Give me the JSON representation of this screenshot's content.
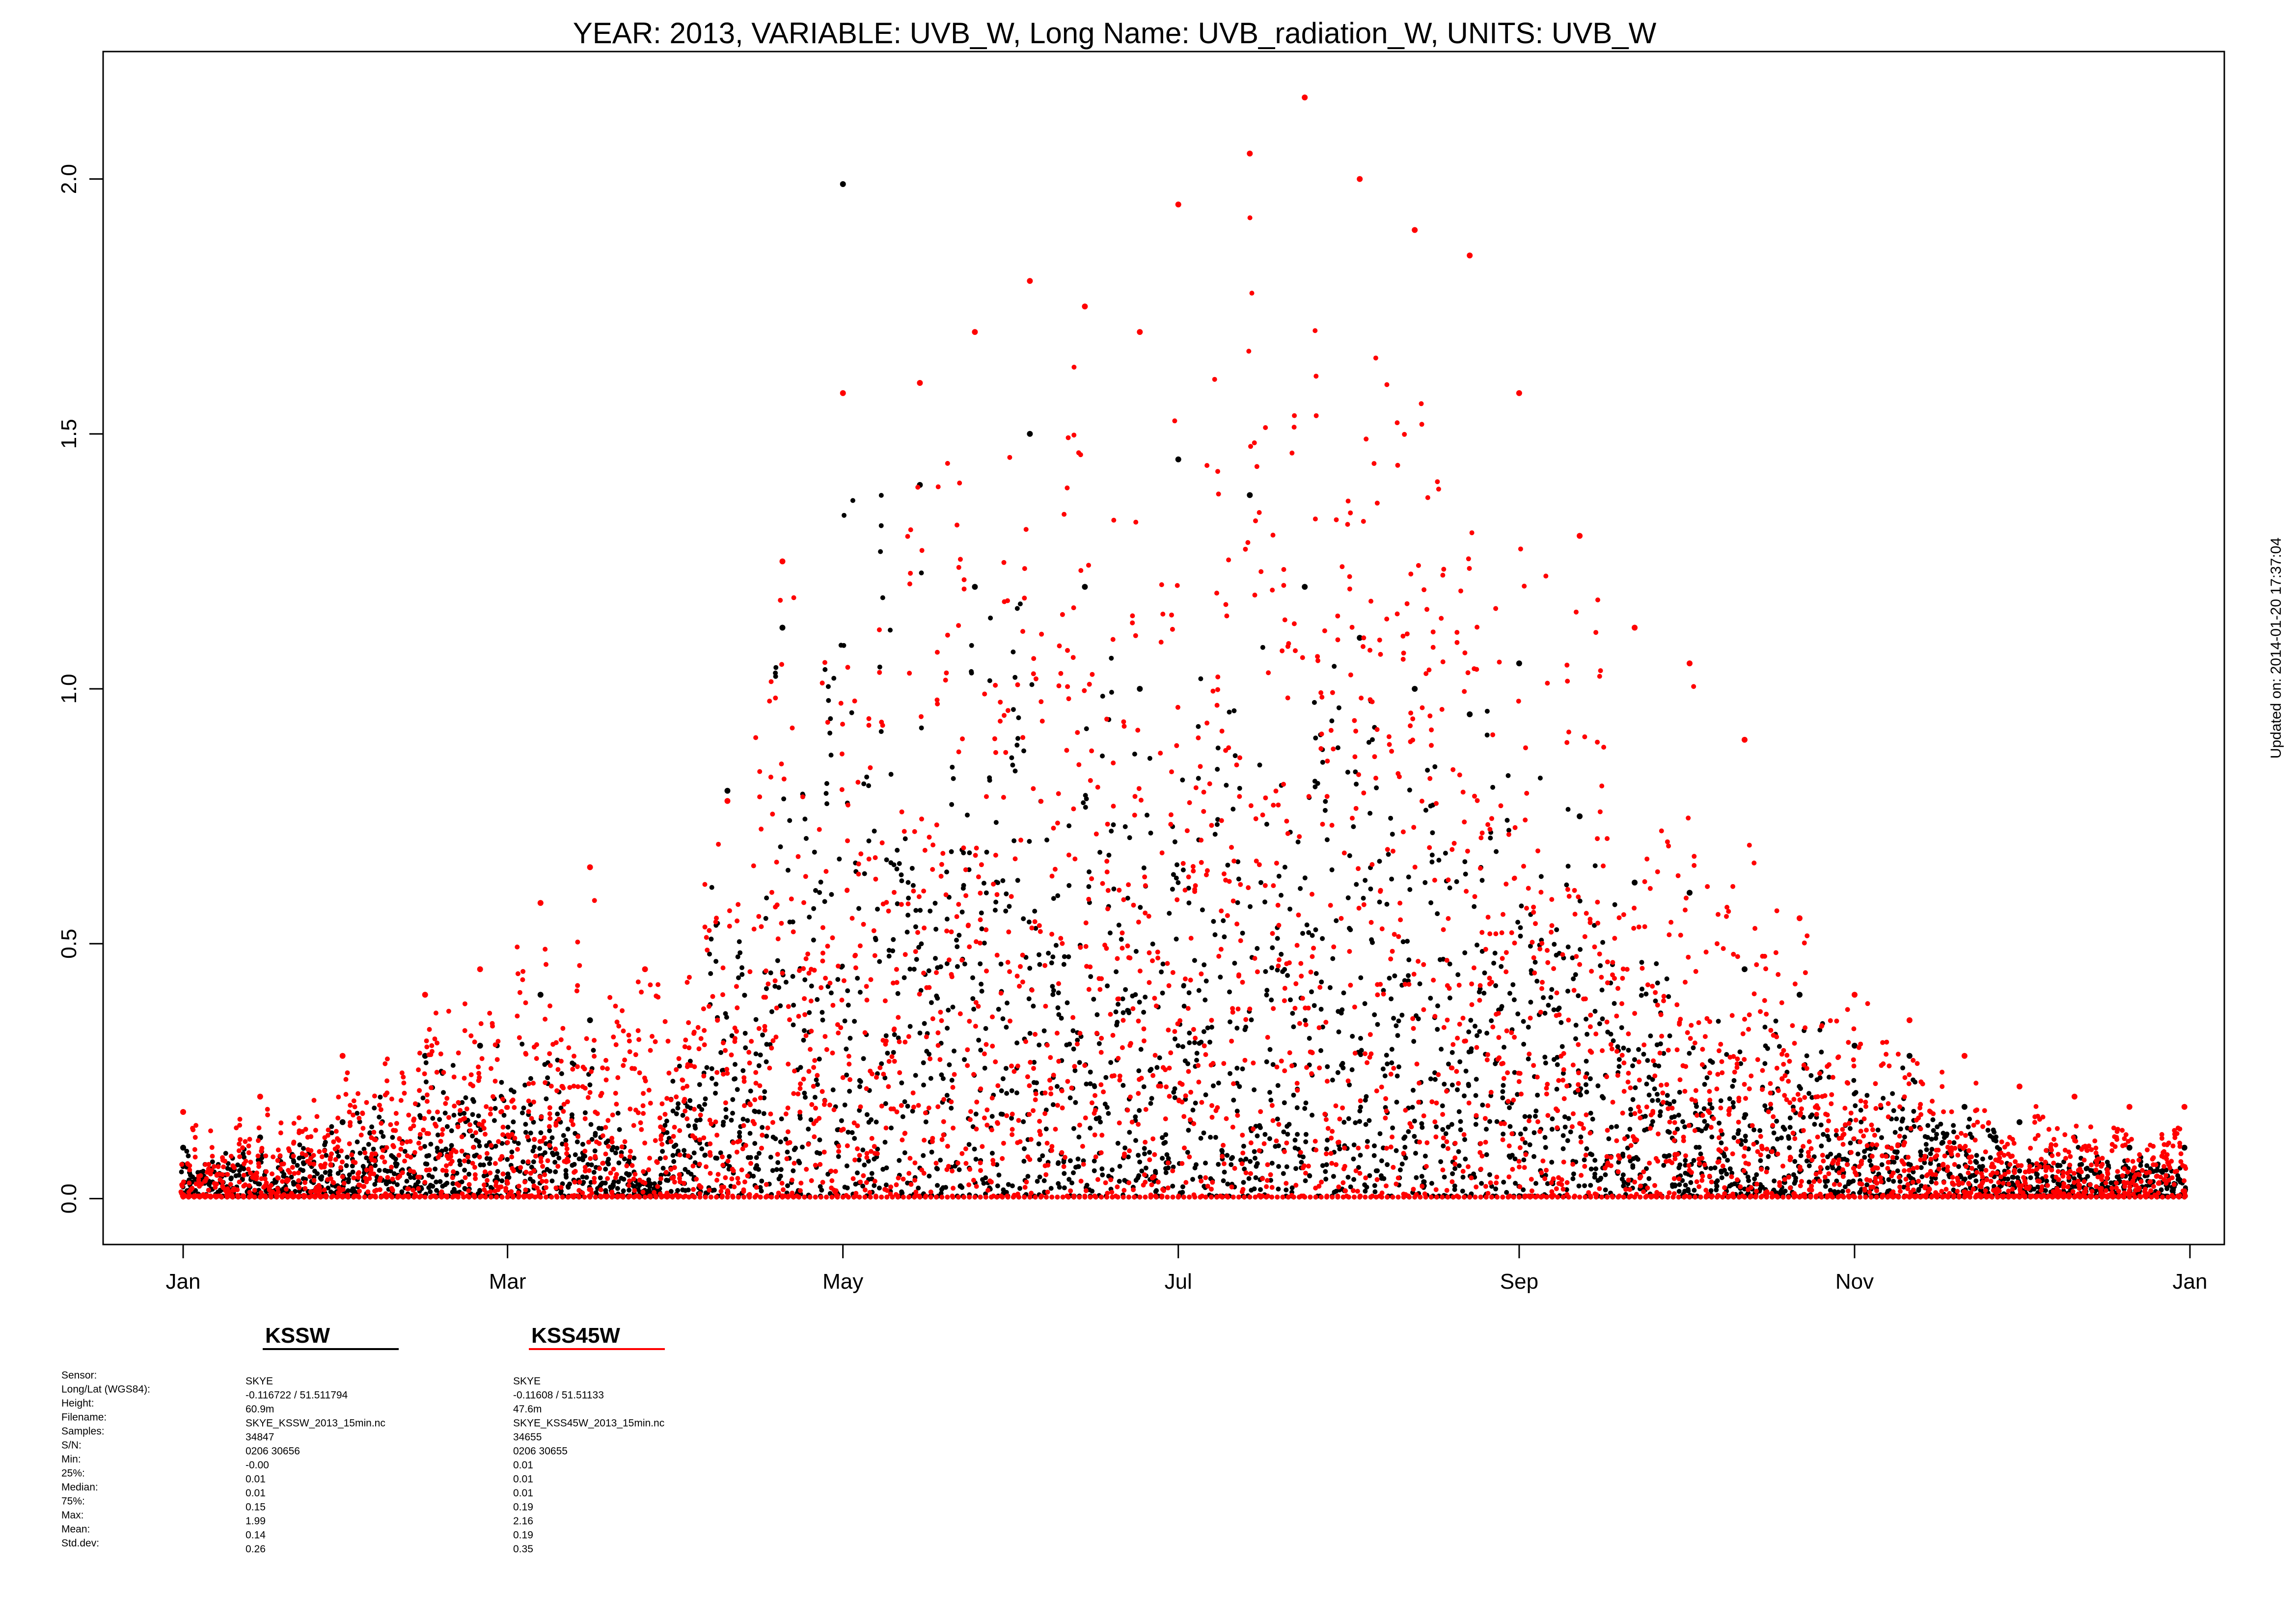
{
  "chart_data": {
    "type": "scatter",
    "title": "YEAR: 2013, VARIABLE: UVB_W, Long Name: UVB_radiation_W, UNITS: UVB_W",
    "updated": "Updated on: 2014-01-20 17:37:04",
    "xlabel": "",
    "ylabel": "",
    "x_unit": "day of year",
    "xlim": [
      1,
      366
    ],
    "ylim": [
      -0.09,
      2.25
    ],
    "x_ticks": [
      {
        "label": "Jan",
        "day": 1
      },
      {
        "label": "Mar",
        "day": 60
      },
      {
        "label": "May",
        "day": 121
      },
      {
        "label": "Jul",
        "day": 182
      },
      {
        "label": "Sep",
        "day": 244
      },
      {
        "label": "Nov",
        "day": 305
      },
      {
        "label": "Jan",
        "day": 366
      }
    ],
    "y_ticks": [
      {
        "label": "0.0",
        "value": 0.0
      },
      {
        "label": "0.5",
        "value": 0.5
      },
      {
        "label": "1.0",
        "value": 1.0
      },
      {
        "label": "1.5",
        "value": 1.5
      },
      {
        "label": "2.0",
        "value": 2.0
      }
    ],
    "series": [
      {
        "name": "KSSW",
        "color": "#000000",
        "daily_max": {
          "days": [
            1,
            15,
            30,
            45,
            55,
            66,
            75,
            85,
            100,
            110,
            121,
            135,
            145,
            155,
            165,
            175,
            182,
            195,
            205,
            215,
            225,
            235,
            244,
            255,
            265,
            275,
            285,
            295,
            305,
            315,
            325,
            335,
            345,
            355,
            365
          ],
          "values": [
            0.1,
            0.12,
            0.15,
            0.28,
            0.3,
            0.4,
            0.35,
            0.05,
            0.8,
            1.12,
            1.99,
            1.4,
            1.2,
            1.5,
            1.2,
            1.0,
            1.45,
            1.38,
            1.2,
            1.1,
            1.0,
            0.95,
            1.05,
            0.75,
            0.62,
            0.6,
            0.45,
            0.4,
            0.3,
            0.28,
            0.18,
            0.15,
            0.12,
            0.1,
            0.1
          ]
        },
        "stats": {
          "sensor": "SKYE",
          "longlat": "-0.116722 / 51.511794",
          "height": "60.9m",
          "filename": "SKYE_KSSW_2013_15min.nc",
          "samples": "34847",
          "sn": "0206 30656",
          "min": "-0.00",
          "p25": "0.01",
          "median": "0.01",
          "p75": "0.15",
          "max": "1.99",
          "mean": "0.14",
          "stddev": "0.26"
        }
      },
      {
        "name": "KSS45W",
        "color": "#ff0000",
        "daily_max": {
          "days": [
            1,
            15,
            30,
            45,
            55,
            66,
            75,
            85,
            100,
            110,
            121,
            135,
            145,
            155,
            165,
            175,
            182,
            195,
            205,
            215,
            225,
            235,
            244,
            255,
            265,
            275,
            285,
            295,
            305,
            315,
            325,
            335,
            345,
            355,
            365
          ],
          "values": [
            0.17,
            0.2,
            0.28,
            0.4,
            0.45,
            0.58,
            0.65,
            0.45,
            0.78,
            1.25,
            1.58,
            1.6,
            1.7,
            1.8,
            1.75,
            1.7,
            1.95,
            2.05,
            2.16,
            2.0,
            1.9,
            1.85,
            1.58,
            1.3,
            1.12,
            1.05,
            0.9,
            0.55,
            0.4,
            0.35,
            0.28,
            0.22,
            0.2,
            0.18,
            0.18
          ]
        },
        "stats": {
          "sensor": "SKYE",
          "longlat": "-0.11608 / 51.51133",
          "height": "47.6m",
          "filename": "SKYE_KSS45W_2013_15min.nc",
          "samples": "34655",
          "sn": "0206 30655",
          "min": "0.01",
          "p25": "0.01",
          "median": "0.01",
          "p75": "0.19",
          "max": "2.16",
          "mean": "0.19",
          "stddev": "0.35"
        }
      }
    ],
    "stat_labels": {
      "sensor": "Sensor:",
      "longlat": "Long/Lat (WGS84):",
      "height": "Height:",
      "filename": "Filename:",
      "samples": "Samples:",
      "sn": "S/N:",
      "min": "Min:",
      "p25": "25%:",
      "median": "Median:",
      "p75": "75%:",
      "max": "Max:",
      "mean": "Mean:",
      "stddev": "Std.dev:"
    },
    "grid": false,
    "legend": "below-left"
  }
}
